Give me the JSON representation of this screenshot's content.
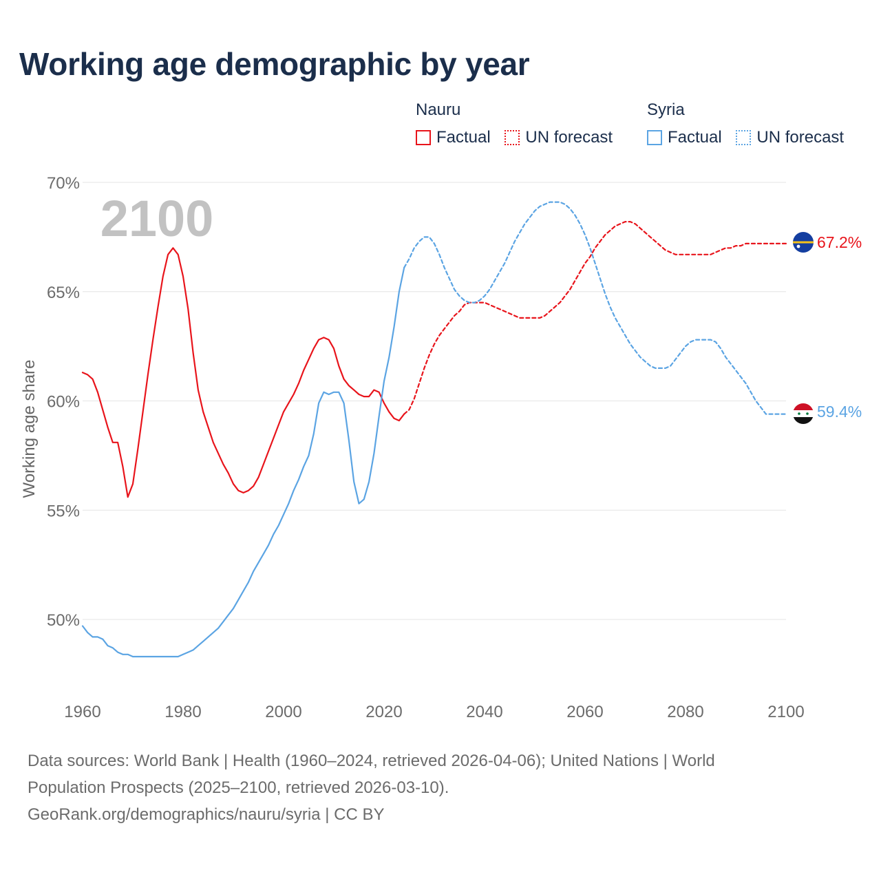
{
  "title": "Working age demographic by year",
  "legend": {
    "nauru": {
      "name": "Nauru",
      "factual": "Factual",
      "forecast": "UN forecast",
      "color": "#e8141b"
    },
    "syria": {
      "name": "Syria",
      "factual": "Factual",
      "forecast": "UN forecast",
      "color": "#5ba4e3"
    }
  },
  "year_label": "2100",
  "end_labels": {
    "nauru": "67.2%",
    "syria": "59.4%"
  },
  "footer": {
    "line1": "Data sources: World Bank | Health (1960–2024, retrieved 2026-04-06); United Nations | World",
    "line2": "Population Prospects (2025–2100, retrieved 2026-03-10).",
    "line3": "GeoRank.org/demographics/nauru/syria | CC BY"
  },
  "chart_data": {
    "type": "line",
    "title": "Working age demographic by year",
    "xlabel": "",
    "ylabel": "Working age share",
    "xlim": [
      1960,
      2100
    ],
    "ylim": [
      46.5,
      70
    ],
    "x_ticks": [
      1960,
      1980,
      2000,
      2020,
      2040,
      2060,
      2080,
      2100
    ],
    "y_ticks": [
      50,
      55,
      60,
      65,
      70
    ],
    "y_tick_labels": [
      "50%",
      "55%",
      "60%",
      "65%",
      "70%"
    ],
    "grid": true,
    "series": [
      {
        "name": "Nauru factual",
        "color": "#e8141b",
        "style": "solid",
        "points": [
          [
            1960,
            61.3
          ],
          [
            1961,
            61.2
          ],
          [
            1962,
            61.0
          ],
          [
            1963,
            60.4
          ],
          [
            1964,
            59.6
          ],
          [
            1965,
            58.8
          ],
          [
            1966,
            58.1
          ],
          [
            1967,
            58.1
          ],
          [
            1968,
            57.0
          ],
          [
            1969,
            55.6
          ],
          [
            1970,
            56.2
          ],
          [
            1971,
            57.8
          ],
          [
            1972,
            59.5
          ],
          [
            1973,
            61.2
          ],
          [
            1974,
            62.8
          ],
          [
            1975,
            64.3
          ],
          [
            1976,
            65.7
          ],
          [
            1977,
            66.7
          ],
          [
            1978,
            67.0
          ],
          [
            1979,
            66.7
          ],
          [
            1980,
            65.7
          ],
          [
            1981,
            64.2
          ],
          [
            1982,
            62.2
          ],
          [
            1983,
            60.5
          ],
          [
            1984,
            59.5
          ],
          [
            1985,
            58.8
          ],
          [
            1986,
            58.1
          ],
          [
            1987,
            57.6
          ],
          [
            1988,
            57.1
          ],
          [
            1989,
            56.7
          ],
          [
            1990,
            56.2
          ],
          [
            1991,
            55.9
          ],
          [
            1992,
            55.8
          ],
          [
            1993,
            55.9
          ],
          [
            1994,
            56.1
          ],
          [
            1995,
            56.5
          ],
          [
            1996,
            57.1
          ],
          [
            1997,
            57.7
          ],
          [
            1998,
            58.3
          ],
          [
            1999,
            58.9
          ],
          [
            2000,
            59.5
          ],
          [
            2001,
            59.9
          ],
          [
            2002,
            60.3
          ],
          [
            2003,
            60.8
          ],
          [
            2004,
            61.4
          ],
          [
            2005,
            61.9
          ],
          [
            2006,
            62.4
          ],
          [
            2007,
            62.8
          ],
          [
            2008,
            62.9
          ],
          [
            2009,
            62.8
          ],
          [
            2010,
            62.4
          ],
          [
            2011,
            61.6
          ],
          [
            2012,
            61.0
          ],
          [
            2013,
            60.7
          ],
          [
            2014,
            60.5
          ],
          [
            2015,
            60.3
          ],
          [
            2016,
            60.2
          ],
          [
            2017,
            60.2
          ],
          [
            2018,
            60.5
          ],
          [
            2019,
            60.4
          ],
          [
            2020,
            59.9
          ],
          [
            2021,
            59.5
          ],
          [
            2022,
            59.2
          ],
          [
            2023,
            59.1
          ],
          [
            2024,
            59.4
          ]
        ]
      },
      {
        "name": "Nauru UN forecast",
        "color": "#e8141b",
        "style": "dashed",
        "points": [
          [
            2024,
            59.4
          ],
          [
            2025,
            59.6
          ],
          [
            2026,
            60.1
          ],
          [
            2027,
            60.8
          ],
          [
            2028,
            61.5
          ],
          [
            2029,
            62.1
          ],
          [
            2030,
            62.6
          ],
          [
            2031,
            63.0
          ],
          [
            2032,
            63.3
          ],
          [
            2033,
            63.6
          ],
          [
            2034,
            63.9
          ],
          [
            2035,
            64.1
          ],
          [
            2036,
            64.4
          ],
          [
            2037,
            64.5
          ],
          [
            2038,
            64.5
          ],
          [
            2039,
            64.5
          ],
          [
            2040,
            64.5
          ],
          [
            2041,
            64.4
          ],
          [
            2042,
            64.3
          ],
          [
            2043,
            64.2
          ],
          [
            2044,
            64.1
          ],
          [
            2045,
            64.0
          ],
          [
            2046,
            63.9
          ],
          [
            2047,
            63.8
          ],
          [
            2048,
            63.8
          ],
          [
            2049,
            63.8
          ],
          [
            2050,
            63.8
          ],
          [
            2051,
            63.8
          ],
          [
            2052,
            63.9
          ],
          [
            2053,
            64.1
          ],
          [
            2054,
            64.3
          ],
          [
            2055,
            64.5
          ],
          [
            2056,
            64.8
          ],
          [
            2057,
            65.1
          ],
          [
            2058,
            65.5
          ],
          [
            2059,
            65.9
          ],
          [
            2060,
            66.3
          ],
          [
            2061,
            66.6
          ],
          [
            2062,
            67.0
          ],
          [
            2063,
            67.3
          ],
          [
            2064,
            67.6
          ],
          [
            2065,
            67.8
          ],
          [
            2066,
            68.0
          ],
          [
            2067,
            68.1
          ],
          [
            2068,
            68.2
          ],
          [
            2069,
            68.2
          ],
          [
            2070,
            68.1
          ],
          [
            2071,
            67.9
          ],
          [
            2072,
            67.7
          ],
          [
            2073,
            67.5
          ],
          [
            2074,
            67.3
          ],
          [
            2075,
            67.1
          ],
          [
            2076,
            66.9
          ],
          [
            2077,
            66.8
          ],
          [
            2078,
            66.7
          ],
          [
            2079,
            66.7
          ],
          [
            2080,
            66.7
          ],
          [
            2081,
            66.7
          ],
          [
            2082,
            66.7
          ],
          [
            2083,
            66.7
          ],
          [
            2084,
            66.7
          ],
          [
            2085,
            66.7
          ],
          [
            2086,
            66.8
          ],
          [
            2087,
            66.9
          ],
          [
            2088,
            67.0
          ],
          [
            2089,
            67.0
          ],
          [
            2090,
            67.1
          ],
          [
            2091,
            67.1
          ],
          [
            2092,
            67.2
          ],
          [
            2093,
            67.2
          ],
          [
            2094,
            67.2
          ],
          [
            2095,
            67.2
          ],
          [
            2096,
            67.2
          ],
          [
            2097,
            67.2
          ],
          [
            2098,
            67.2
          ],
          [
            2099,
            67.2
          ],
          [
            2100,
            67.2
          ]
        ]
      },
      {
        "name": "Syria factual",
        "color": "#5ba4e3",
        "style": "solid",
        "points": [
          [
            1960,
            49.7
          ],
          [
            1961,
            49.4
          ],
          [
            1962,
            49.2
          ],
          [
            1963,
            49.2
          ],
          [
            1964,
            49.1
          ],
          [
            1965,
            48.8
          ],
          [
            1966,
            48.7
          ],
          [
            1967,
            48.5
          ],
          [
            1968,
            48.4
          ],
          [
            1969,
            48.4
          ],
          [
            1970,
            48.3
          ],
          [
            1971,
            48.3
          ],
          [
            1972,
            48.3
          ],
          [
            1973,
            48.3
          ],
          [
            1974,
            48.3
          ],
          [
            1975,
            48.3
          ],
          [
            1976,
            48.3
          ],
          [
            1977,
            48.3
          ],
          [
            1978,
            48.3
          ],
          [
            1979,
            48.3
          ],
          [
            1980,
            48.4
          ],
          [
            1981,
            48.5
          ],
          [
            1982,
            48.6
          ],
          [
            1983,
            48.8
          ],
          [
            1984,
            49.0
          ],
          [
            1985,
            49.2
          ],
          [
            1986,
            49.4
          ],
          [
            1987,
            49.6
          ],
          [
            1988,
            49.9
          ],
          [
            1989,
            50.2
          ],
          [
            1990,
            50.5
          ],
          [
            1991,
            50.9
          ],
          [
            1992,
            51.3
          ],
          [
            1993,
            51.7
          ],
          [
            1994,
            52.2
          ],
          [
            1995,
            52.6
          ],
          [
            1996,
            53.0
          ],
          [
            1997,
            53.4
          ],
          [
            1998,
            53.9
          ],
          [
            1999,
            54.3
          ],
          [
            2000,
            54.8
          ],
          [
            2001,
            55.3
          ],
          [
            2002,
            55.9
          ],
          [
            2003,
            56.4
          ],
          [
            2004,
            57.0
          ],
          [
            2005,
            57.5
          ],
          [
            2006,
            58.5
          ],
          [
            2007,
            59.9
          ],
          [
            2008,
            60.4
          ],
          [
            2009,
            60.3
          ],
          [
            2010,
            60.4
          ],
          [
            2011,
            60.4
          ],
          [
            2012,
            59.9
          ],
          [
            2013,
            58.2
          ],
          [
            2014,
            56.3
          ],
          [
            2015,
            55.3
          ],
          [
            2016,
            55.5
          ],
          [
            2017,
            56.3
          ],
          [
            2018,
            57.6
          ],
          [
            2019,
            59.3
          ],
          [
            2020,
            60.9
          ],
          [
            2021,
            62.0
          ],
          [
            2022,
            63.4
          ],
          [
            2023,
            65.0
          ],
          [
            2024,
            66.1
          ]
        ]
      },
      {
        "name": "Syria UN forecast",
        "color": "#5ba4e3",
        "style": "dashed",
        "points": [
          [
            2024,
            66.1
          ],
          [
            2025,
            66.5
          ],
          [
            2026,
            67.0
          ],
          [
            2027,
            67.3
          ],
          [
            2028,
            67.5
          ],
          [
            2029,
            67.5
          ],
          [
            2030,
            67.2
          ],
          [
            2031,
            66.7
          ],
          [
            2032,
            66.1
          ],
          [
            2033,
            65.6
          ],
          [
            2034,
            65.1
          ],
          [
            2035,
            64.8
          ],
          [
            2036,
            64.6
          ],
          [
            2037,
            64.5
          ],
          [
            2038,
            64.5
          ],
          [
            2039,
            64.6
          ],
          [
            2040,
            64.8
          ],
          [
            2041,
            65.1
          ],
          [
            2042,
            65.5
          ],
          [
            2043,
            65.9
          ],
          [
            2044,
            66.3
          ],
          [
            2045,
            66.8
          ],
          [
            2046,
            67.3
          ],
          [
            2047,
            67.7
          ],
          [
            2048,
            68.1
          ],
          [
            2049,
            68.4
          ],
          [
            2050,
            68.7
          ],
          [
            2051,
            68.9
          ],
          [
            2052,
            69.0
          ],
          [
            2053,
            69.1
          ],
          [
            2054,
            69.1
          ],
          [
            2055,
            69.1
          ],
          [
            2056,
            69.0
          ],
          [
            2057,
            68.8
          ],
          [
            2058,
            68.5
          ],
          [
            2059,
            68.1
          ],
          [
            2060,
            67.6
          ],
          [
            2061,
            67.0
          ],
          [
            2062,
            66.3
          ],
          [
            2063,
            65.6
          ],
          [
            2064,
            64.9
          ],
          [
            2065,
            64.3
          ],
          [
            2066,
            63.8
          ],
          [
            2067,
            63.4
          ],
          [
            2068,
            63.0
          ],
          [
            2069,
            62.6
          ],
          [
            2070,
            62.3
          ],
          [
            2071,
            62.0
          ],
          [
            2072,
            61.8
          ],
          [
            2073,
            61.6
          ],
          [
            2074,
            61.5
          ],
          [
            2075,
            61.5
          ],
          [
            2076,
            61.5
          ],
          [
            2077,
            61.6
          ],
          [
            2078,
            61.9
          ],
          [
            2079,
            62.2
          ],
          [
            2080,
            62.5
          ],
          [
            2081,
            62.7
          ],
          [
            2082,
            62.8
          ],
          [
            2083,
            62.8
          ],
          [
            2084,
            62.8
          ],
          [
            2085,
            62.8
          ],
          [
            2086,
            62.7
          ],
          [
            2087,
            62.4
          ],
          [
            2088,
            62.0
          ],
          [
            2089,
            61.7
          ],
          [
            2090,
            61.4
          ],
          [
            2091,
            61.1
          ],
          [
            2092,
            60.8
          ],
          [
            2093,
            60.4
          ],
          [
            2094,
            60.0
          ],
          [
            2095,
            59.7
          ],
          [
            2096,
            59.4
          ],
          [
            2097,
            59.4
          ],
          [
            2098,
            59.4
          ],
          [
            2099,
            59.4
          ],
          [
            2100,
            59.4
          ]
        ]
      }
    ]
  }
}
